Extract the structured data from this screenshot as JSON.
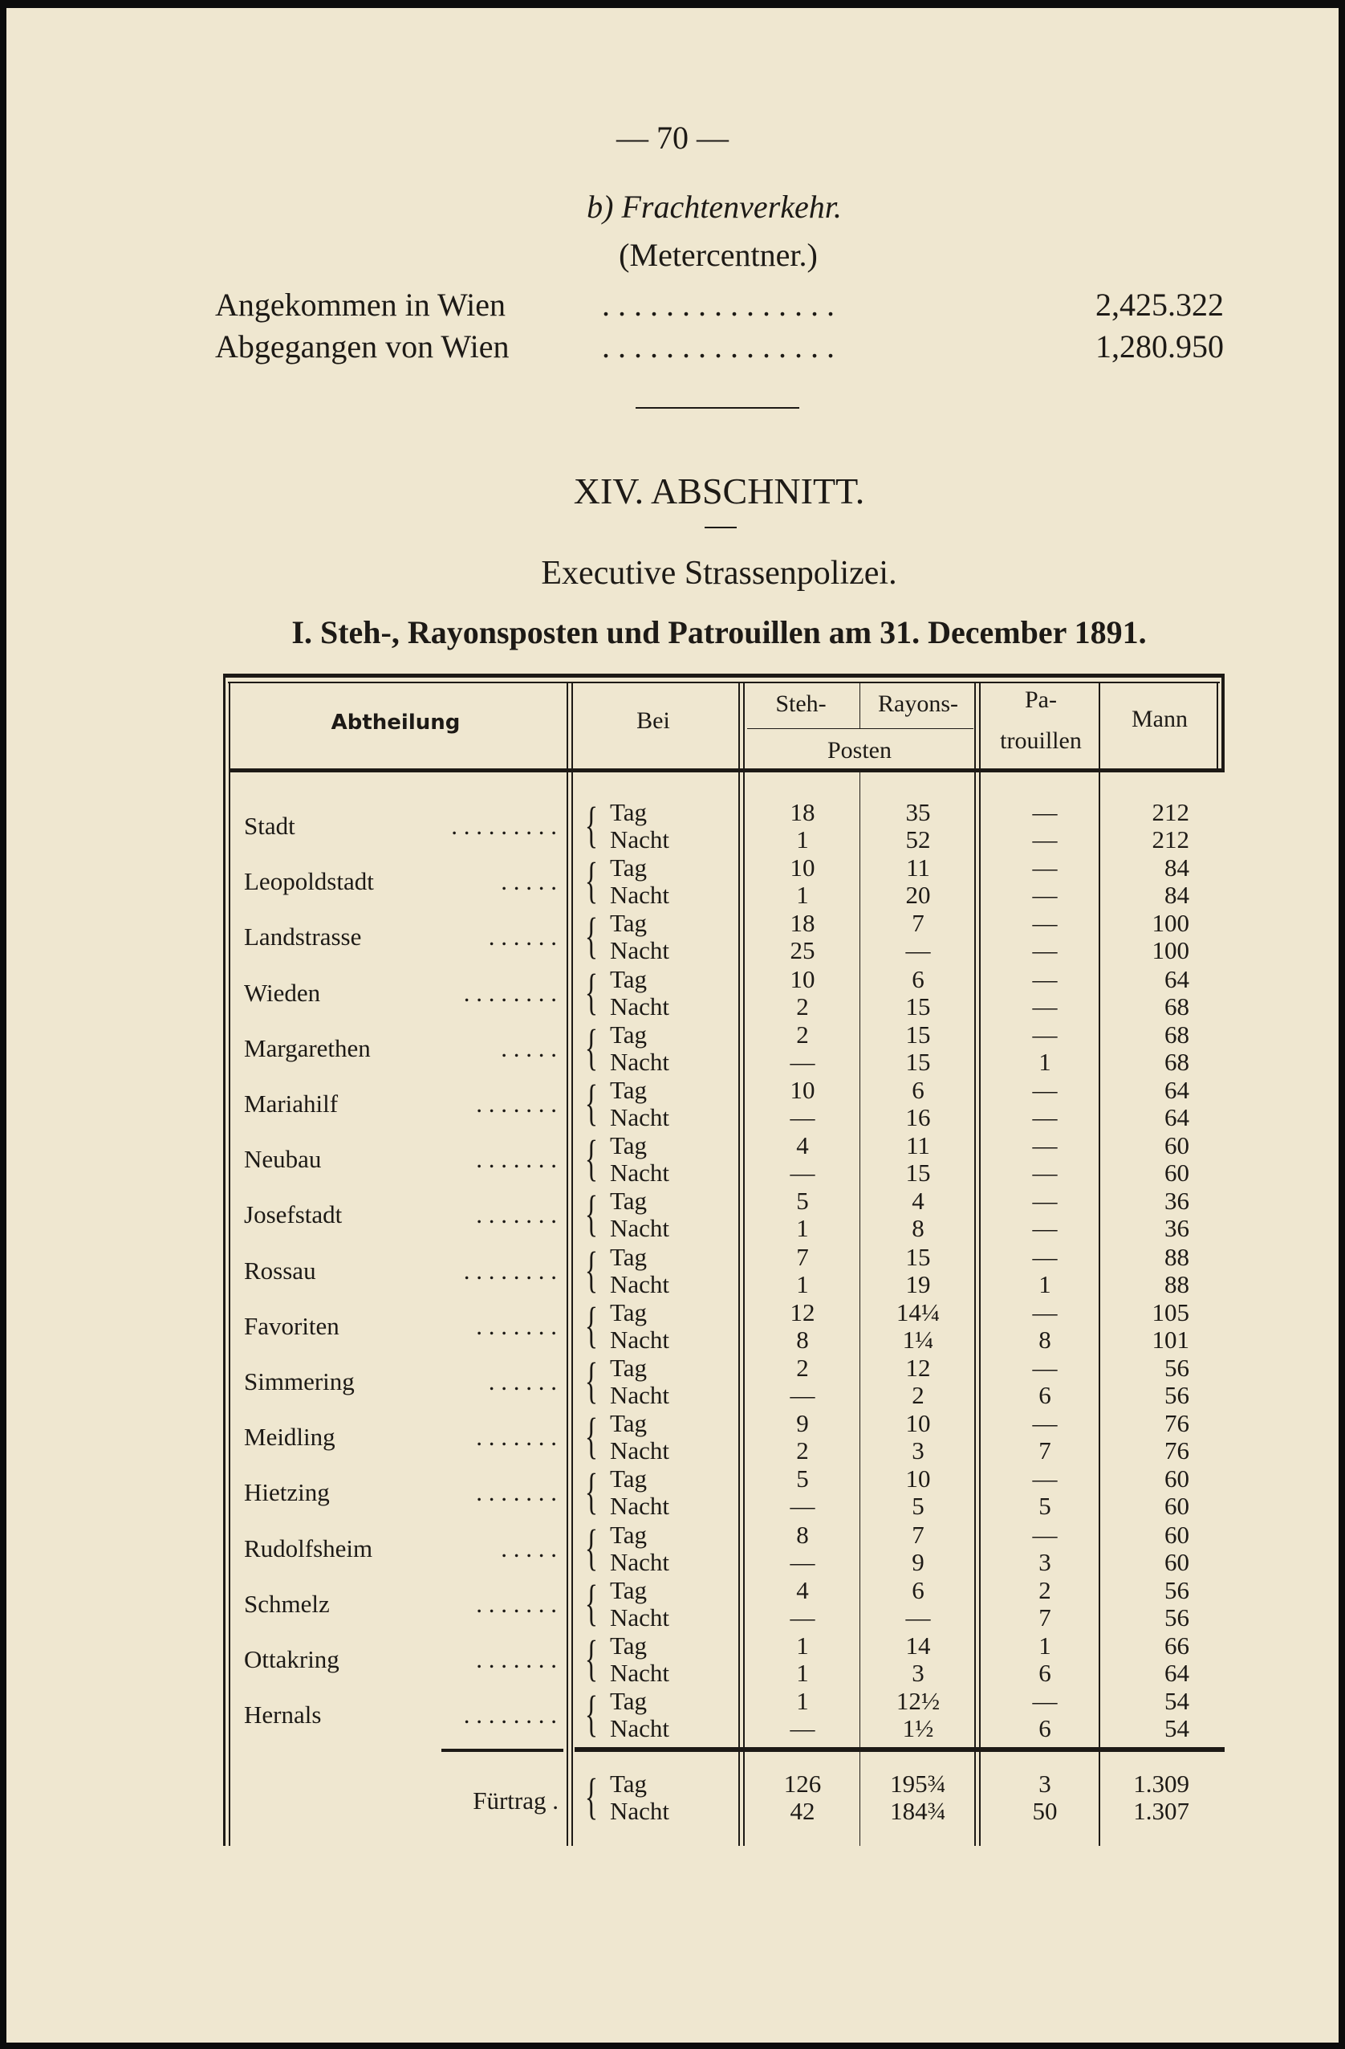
{
  "page_number": "— 70 —",
  "freight": {
    "heading": "b) Frachtenverkehr.",
    "unit": "(Metercentner.)",
    "rows": [
      {
        "label": "Angekommen in Wien",
        "dots": ". . . . . . . . . . . . . . .",
        "value": "2,425.322"
      },
      {
        "label": "Abgegangen von Wien",
        "dots": ". . . . . . . . . . . . . . .",
        "value": "1,280.950"
      }
    ]
  },
  "section": {
    "title": "XIV. ABSCHNITT.",
    "subtitle": "Executive Strassenpolizei.",
    "table_title": "I. Steh-, Rayonsposten und Patrouillen am 31. December 1891."
  },
  "table": {
    "headers": {
      "abtheilung": "Abtheilung",
      "bei": "Bei",
      "steh": "Steh-",
      "rayons": "Rayons-",
      "posten": "Posten",
      "pa": "Pa-",
      "trouillen": "trouillen",
      "mann": "Mann"
    },
    "rows": [
      {
        "name": "Stadt",
        "dots": ". . . . . . . . .",
        "tag": [
          "18",
          "35",
          "—",
          "212"
        ],
        "nacht": [
          "1",
          "52",
          "—",
          "212"
        ]
      },
      {
        "name": "Leopoldstadt",
        "dots": ". . . . .",
        "tag": [
          "10",
          "11",
          "—",
          "84"
        ],
        "nacht": [
          "1",
          "20",
          "—",
          "84"
        ]
      },
      {
        "name": "Landstrasse",
        "dots": ". . . . . .",
        "tag": [
          "18",
          "7",
          "—",
          "100"
        ],
        "nacht": [
          "25",
          "—",
          "—",
          "100"
        ]
      },
      {
        "name": "Wieden",
        "dots": ". . . . . . . .",
        "tag": [
          "10",
          "6",
          "—",
          "64"
        ],
        "nacht": [
          "2",
          "15",
          "—",
          "68"
        ]
      },
      {
        "name": "Margarethen",
        "dots": ". . . . .",
        "tag": [
          "2",
          "15",
          "—",
          "68"
        ],
        "nacht": [
          "—",
          "15",
          "1",
          "68"
        ]
      },
      {
        "name": "Mariahilf",
        "dots": ". . . . . . .",
        "tag": [
          "10",
          "6",
          "—",
          "64"
        ],
        "nacht": [
          "—",
          "16",
          "—",
          "64"
        ]
      },
      {
        "name": "Neubau",
        "dots": ". . . . . . .",
        "tag": [
          "4",
          "11",
          "—",
          "60"
        ],
        "nacht": [
          "—",
          "15",
          "—",
          "60"
        ]
      },
      {
        "name": "Josefstadt",
        "dots": ". . . . . . .",
        "tag": [
          "5",
          "4",
          "—",
          "36"
        ],
        "nacht": [
          "1",
          "8",
          "—",
          "36"
        ]
      },
      {
        "name": "Rossau",
        "dots": ". . . . . . . .",
        "tag": [
          "7",
          "15",
          "—",
          "88"
        ],
        "nacht": [
          "1",
          "19",
          "1",
          "88"
        ]
      },
      {
        "name": "Favoriten",
        "dots": ". . . . . . .",
        "tag": [
          "12",
          "14¼",
          "—",
          "105"
        ],
        "nacht": [
          "8",
          "1¼",
          "8",
          "101"
        ]
      },
      {
        "name": "Simmering",
        "dots": ". . . . . .",
        "tag": [
          "2",
          "12",
          "—",
          "56"
        ],
        "nacht": [
          "—",
          "2",
          "6",
          "56"
        ]
      },
      {
        "name": "Meidling",
        "dots": ". . . . . . .",
        "tag": [
          "9",
          "10",
          "—",
          "76"
        ],
        "nacht": [
          "2",
          "3",
          "7",
          "76"
        ]
      },
      {
        "name": "Hietzing",
        "dots": ". . . . . . .",
        "tag": [
          "5",
          "10",
          "—",
          "60"
        ],
        "nacht": [
          "—",
          "5",
          "5",
          "60"
        ]
      },
      {
        "name": "Rudolfsheim",
        "dots": ". . . . .",
        "tag": [
          "8",
          "7",
          "—",
          "60"
        ],
        "nacht": [
          "—",
          "9",
          "3",
          "60"
        ]
      },
      {
        "name": "Schmelz",
        "dots": ". . . . . . .",
        "tag": [
          "4",
          "6",
          "2",
          "56"
        ],
        "nacht": [
          "—",
          "—",
          "7",
          "56"
        ]
      },
      {
        "name": "Ottakring",
        "dots": ". . . . . . .",
        "tag": [
          "1",
          "14",
          "1",
          "66"
        ],
        "nacht": [
          "1",
          "3",
          "6",
          "64"
        ]
      },
      {
        "name": "Hernals",
        "dots": ". . . . . . . .",
        "tag": [
          "1",
          "12½",
          "—",
          "54"
        ],
        "nacht": [
          "—",
          "1½",
          "6",
          "54"
        ]
      }
    ],
    "tag_label": "Tag",
    "nacht_label": "Nacht",
    "total": {
      "label": "Fürtrag .",
      "tag": [
        "126",
        "195¾",
        "3",
        "1.309"
      ],
      "nacht": [
        "42",
        "184¾",
        "50",
        "1.307"
      ]
    }
  }
}
